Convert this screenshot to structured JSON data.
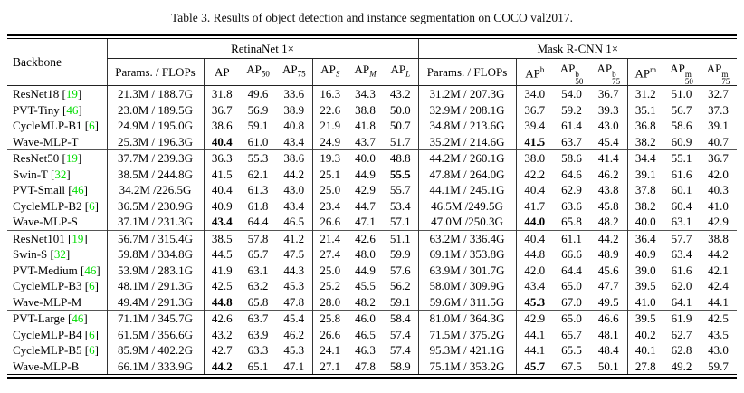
{
  "caption": "Table 3. Results of object detection and instance segmentation on COCO val2017.",
  "colors": {
    "citation_green": "#00dd00",
    "text": "#000000",
    "rule": "#000000"
  },
  "table": {
    "headers": {
      "backbone": "Backbone",
      "retinanet_group": "RetinaNet 1×",
      "mask_group": "Mask R-CNN 1×",
      "params": "Params. / FLOPs",
      "ap": "AP",
      "sub50": "50",
      "sub75": "75",
      "subS": "S",
      "subM": "M",
      "subL": "L",
      "supB": "b",
      "supM": "m"
    },
    "groups": [
      {
        "rows": [
          {
            "backbone": "ResNet18",
            "cite": "19",
            "bold": [],
            "cells": [
              "21.3M / 188.7G",
              "31.8",
              "49.6",
              "33.6",
              "16.3",
              "34.3",
              "43.2",
              "31.2M / 207.3G",
              "34.0",
              "54.0",
              "36.7",
              "31.2",
              "51.0",
              "32.7"
            ]
          },
          {
            "backbone": "PVT-Tiny",
            "cite": "46",
            "bold": [],
            "cells": [
              "23.0M / 189.5G",
              "36.7",
              "56.9",
              "38.9",
              "22.6",
              "38.8",
              "50.0",
              "32.9M / 208.1G",
              "36.7",
              "59.2",
              "39.3",
              "35.1",
              "56.7",
              "37.3"
            ]
          },
          {
            "backbone": "CycleMLP-B1",
            "cite": "6",
            "bold": [],
            "cells": [
              "24.9M / 195.0G",
              "38.6",
              "59.1",
              "40.8",
              "21.9",
              "41.8",
              "50.7",
              "34.8M / 213.6G",
              "39.4",
              "61.4",
              "43.0",
              "36.8",
              "58.6",
              "39.1"
            ]
          },
          {
            "backbone": "Wave-MLP-T",
            "cite": "",
            "bold": [
              1,
              8
            ],
            "cells": [
              "25.3M / 196.3G",
              "40.4",
              "61.0",
              "43.4",
              "24.9",
              "43.7",
              "51.7",
              "35.2M / 214.6G",
              "41.5",
              "63.7",
              "45.4",
              "38.2",
              "60.9",
              "40.7"
            ]
          }
        ]
      },
      {
        "rows": [
          {
            "backbone": "ResNet50",
            "cite": "19",
            "bold": [],
            "cells": [
              "37.7M / 239.3G",
              "36.3",
              "55.3",
              "38.6",
              "19.3",
              "40.0",
              "48.8",
              "44.2M / 260.1G",
              "38.0",
              "58.6",
              "41.4",
              "34.4",
              "55.1",
              "36.7"
            ]
          },
          {
            "backbone": "Swin-T",
            "cite": "32",
            "bold": [
              6
            ],
            "cells": [
              "38.5M / 244.8G",
              "41.5",
              "62.1",
              "44.2",
              "25.1",
              "44.9",
              "55.5",
              "47.8M / 264.0G",
              "42.2",
              "64.6",
              "46.2",
              "39.1",
              "61.6",
              "42.0"
            ]
          },
          {
            "backbone": "PVT-Small",
            "cite": "46",
            "bold": [],
            "cells": [
              "34.2M /226.5G",
              "40.4",
              "61.3",
              "43.0",
              "25.0",
              "42.9",
              "55.7",
              "44.1M / 245.1G",
              "40.4",
              "62.9",
              "43.8",
              "37.8",
              "60.1",
              "40.3"
            ]
          },
          {
            "backbone": "CycleMLP-B2",
            "cite": "6",
            "bold": [],
            "cells": [
              "36.5M / 230.9G",
              "40.9",
              "61.8",
              "43.4",
              "23.4",
              "44.7",
              "53.4",
              "46.5M /249.5G",
              "41.7",
              "63.6",
              "45.8",
              "38.2",
              "60.4",
              "41.0"
            ]
          },
          {
            "backbone": "Wave-MLP-S",
            "cite": "",
            "bold": [
              1,
              8
            ],
            "cells": [
              "37.1M / 231.3G",
              "43.4",
              "64.4",
              "46.5",
              "26.6",
              "47.1",
              "57.1",
              "47.0M /250.3G",
              "44.0",
              "65.8",
              "48.2",
              "40.0",
              "63.1",
              "42.9"
            ]
          }
        ]
      },
      {
        "rows": [
          {
            "backbone": "ResNet101",
            "cite": "19",
            "bold": [],
            "cells": [
              "56.7M / 315.4G",
              "38.5",
              "57.8",
              "41.2",
              "21.4",
              "42.6",
              "51.1",
              "63.2M / 336.4G",
              "40.4",
              "61.1",
              "44.2",
              "36.4",
              "57.7",
              "38.8"
            ]
          },
          {
            "backbone": "Swin-S",
            "cite": "32",
            "bold": [],
            "cells": [
              "59.8M / 334.8G",
              "44.5",
              "65.7",
              "47.5",
              "27.4",
              "48.0",
              "59.9",
              "69.1M / 353.8G",
              "44.8",
              "66.6",
              "48.9",
              "40.9",
              "63.4",
              "44.2"
            ]
          },
          {
            "backbone": "PVT-Medium",
            "cite": "46",
            "bold": [],
            "cells": [
              "53.9M / 283.1G",
              "41.9",
              "63.1",
              "44.3",
              "25.0",
              "44.9",
              "57.6",
              "63.9M / 301.7G",
              "42.0",
              "64.4",
              "45.6",
              "39.0",
              "61.6",
              "42.1"
            ]
          },
          {
            "backbone": "CycleMLP-B3",
            "cite": "6",
            "bold": [],
            "cells": [
              "48.1M / 291.3G",
              "42.5",
              "63.2",
              "45.3",
              "25.2",
              "45.5",
              "56.2",
              "58.0M / 309.9G",
              "43.4",
              "65.0",
              "47.7",
              "39.5",
              "62.0",
              "42.4"
            ]
          },
          {
            "backbone": "Wave-MLP-M",
            "cite": "",
            "bold": [
              1,
              8
            ],
            "cells": [
              "49.4M / 291.3G",
              "44.8",
              "65.8",
              "47.8",
              "28.0",
              "48.2",
              "59.1",
              "59.6M / 311.5G",
              "45.3",
              "67.0",
              "49.5",
              "41.0",
              "64.1",
              "44.1"
            ]
          }
        ]
      },
      {
        "rows": [
          {
            "backbone": "PVT-Large",
            "cite": "46",
            "bold": [],
            "cells": [
              "71.1M / 345.7G",
              "42.6",
              "63.7",
              "45.4",
              "25.8",
              "46.0",
              "58.4",
              "81.0M / 364.3G",
              "42.9",
              "65.0",
              "46.6",
              "39.5",
              "61.9",
              "42.5"
            ]
          },
          {
            "backbone": "CycleMLP-B4",
            "cite": "6",
            "bold": [],
            "cells": [
              "61.5M / 356.6G",
              "43.2",
              "63.9",
              "46.2",
              "26.6",
              "46.5",
              "57.4",
              "71.5M / 375.2G",
              "44.1",
              "65.7",
              "48.1",
              "40.2",
              "62.7",
              "43.5"
            ]
          },
          {
            "backbone": "CycleMLP-B5",
            "cite": "6",
            "bold": [],
            "cells": [
              "85.9M / 402.2G",
              "42.7",
              "63.3",
              "45.3",
              "24.1",
              "46.3",
              "57.4",
              "95.3M / 421.1G",
              "44.1",
              "65.5",
              "48.4",
              "40.1",
              "62.8",
              "43.0"
            ]
          },
          {
            "backbone": "Wave-MLP-B",
            "cite": "",
            "bold": [
              1,
              8
            ],
            "cells": [
              "66.1M / 333.9G",
              "44.2",
              "65.1",
              "47.1",
              "27.1",
              "47.8",
              "58.9",
              "75.1M / 353.2G",
              "45.7",
              "67.5",
              "50.1",
              "27.8",
              "49.2",
              "59.7"
            ]
          }
        ]
      }
    ]
  }
}
